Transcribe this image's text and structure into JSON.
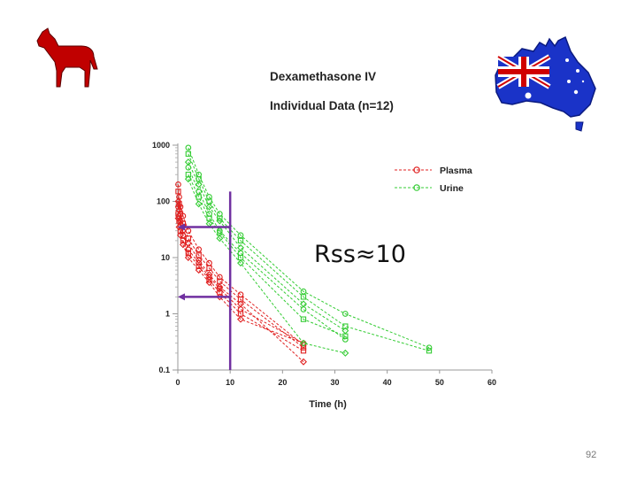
{
  "slide": {
    "title_line1": "Dexamethasone IV",
    "title_line2": "Individual Data (n=12)",
    "annotation": "Rss≈10",
    "page_number": "92"
  },
  "images": {
    "left": "horse-silhouette-icon",
    "right": "australia-flag-map-icon"
  },
  "colors": {
    "plasma": "#e02020",
    "urine": "#33cc33",
    "guides": "#7030a0",
    "horse": "#c00000",
    "map_blue": "#1a33c8"
  },
  "chart_data": {
    "type": "scatter",
    "title": "Dexamethasone IV Individual Data (n=12)",
    "xlabel": "Time (h)",
    "ylabel": "",
    "xlim": [
      0,
      60
    ],
    "ylim": [
      0.1,
      1000
    ],
    "yscale": "log",
    "xticks": [
      0,
      10,
      20,
      30,
      40,
      50,
      60
    ],
    "yticks": [
      {
        "value": 0.1,
        "label": "0.1"
      },
      {
        "value": 1,
        "label": "1"
      },
      {
        "value": 10,
        "label": "10"
      },
      {
        "value": 100,
        "label": "100"
      },
      {
        "value": 1000,
        "label": "1000"
      }
    ],
    "legend": {
      "position": "top-right",
      "entries": [
        "Plasma",
        "Urine"
      ]
    },
    "series": [
      {
        "name": "Plasma",
        "subject": 1,
        "x": [
          0.08,
          0.25,
          0.5,
          1,
          2,
          4,
          6,
          8,
          12,
          24
        ],
        "y": [
          200,
          120,
          80,
          55,
          30,
          14,
          8,
          4.5,
          2.2,
          0.28
        ]
      },
      {
        "name": "Plasma",
        "subject": 2,
        "x": [
          0.08,
          0.25,
          0.5,
          1,
          2,
          4,
          6,
          8,
          12,
          24
        ],
        "y": [
          150,
          90,
          60,
          40,
          22,
          11,
          6.5,
          3.8,
          1.8,
          0.25
        ]
      },
      {
        "name": "Plasma",
        "subject": 3,
        "x": [
          0.08,
          0.25,
          0.5,
          1,
          2,
          4,
          6,
          8,
          12,
          24
        ],
        "y": [
          100,
          70,
          45,
          30,
          18,
          9,
          5,
          3,
          1.5,
          0.14
        ]
      },
      {
        "name": "Plasma",
        "subject": 4,
        "x": [
          0.08,
          0.25,
          0.5,
          1,
          2,
          4,
          6,
          8,
          12,
          24
        ],
        "y": [
          80,
          55,
          38,
          25,
          14,
          8,
          4.5,
          2.8,
          1.2,
          0.3
        ]
      },
      {
        "name": "Plasma",
        "subject": 5,
        "x": [
          0.08,
          0.25,
          0.5,
          1,
          2,
          4,
          6,
          8,
          12,
          24
        ],
        "y": [
          60,
          45,
          30,
          20,
          12,
          7,
          4,
          2.4,
          1,
          0.22
        ]
      },
      {
        "name": "Plasma",
        "subject": 6,
        "x": [
          0.08,
          0.25,
          0.5,
          1,
          2,
          4,
          6,
          8,
          12,
          24
        ],
        "y": [
          50,
          35,
          25,
          17,
          10,
          6,
          3.6,
          2,
          0.8,
          0.3
        ]
      },
      {
        "name": "Urine",
        "subject": 1,
        "x": [
          2,
          4,
          6,
          8,
          12,
          24,
          32,
          48
        ],
        "y": [
          900,
          300,
          120,
          60,
          25,
          2.5,
          1,
          0.25
        ]
      },
      {
        "name": "Urine",
        "subject": 2,
        "x": [
          2,
          4,
          6,
          8,
          12,
          24,
          32,
          48
        ],
        "y": [
          700,
          250,
          100,
          50,
          20,
          2,
          0.6,
          0.22
        ]
      },
      {
        "name": "Urine",
        "subject": 3,
        "x": [
          2,
          4,
          6,
          8,
          12,
          24,
          32
        ],
        "y": [
          500,
          200,
          80,
          45,
          15,
          1.5,
          0.5
        ]
      },
      {
        "name": "Urine",
        "subject": 4,
        "x": [
          2,
          4,
          6,
          8,
          12,
          24,
          32
        ],
        "y": [
          400,
          150,
          60,
          30,
          12,
          1.2,
          0.35
        ]
      },
      {
        "name": "Urine",
        "subject": 5,
        "x": [
          2,
          4,
          6,
          8,
          12,
          24,
          32
        ],
        "y": [
          300,
          120,
          50,
          28,
          10,
          0.8,
          0.4
        ]
      },
      {
        "name": "Urine",
        "subject": 6,
        "x": [
          2,
          4,
          6,
          8,
          12,
          24,
          32
        ],
        "y": [
          250,
          90,
          40,
          22,
          8,
          0.3,
          0.2
        ]
      }
    ],
    "guides": {
      "vertical_at_x": 10,
      "urine_level": 35,
      "plasma_level": 2
    }
  }
}
